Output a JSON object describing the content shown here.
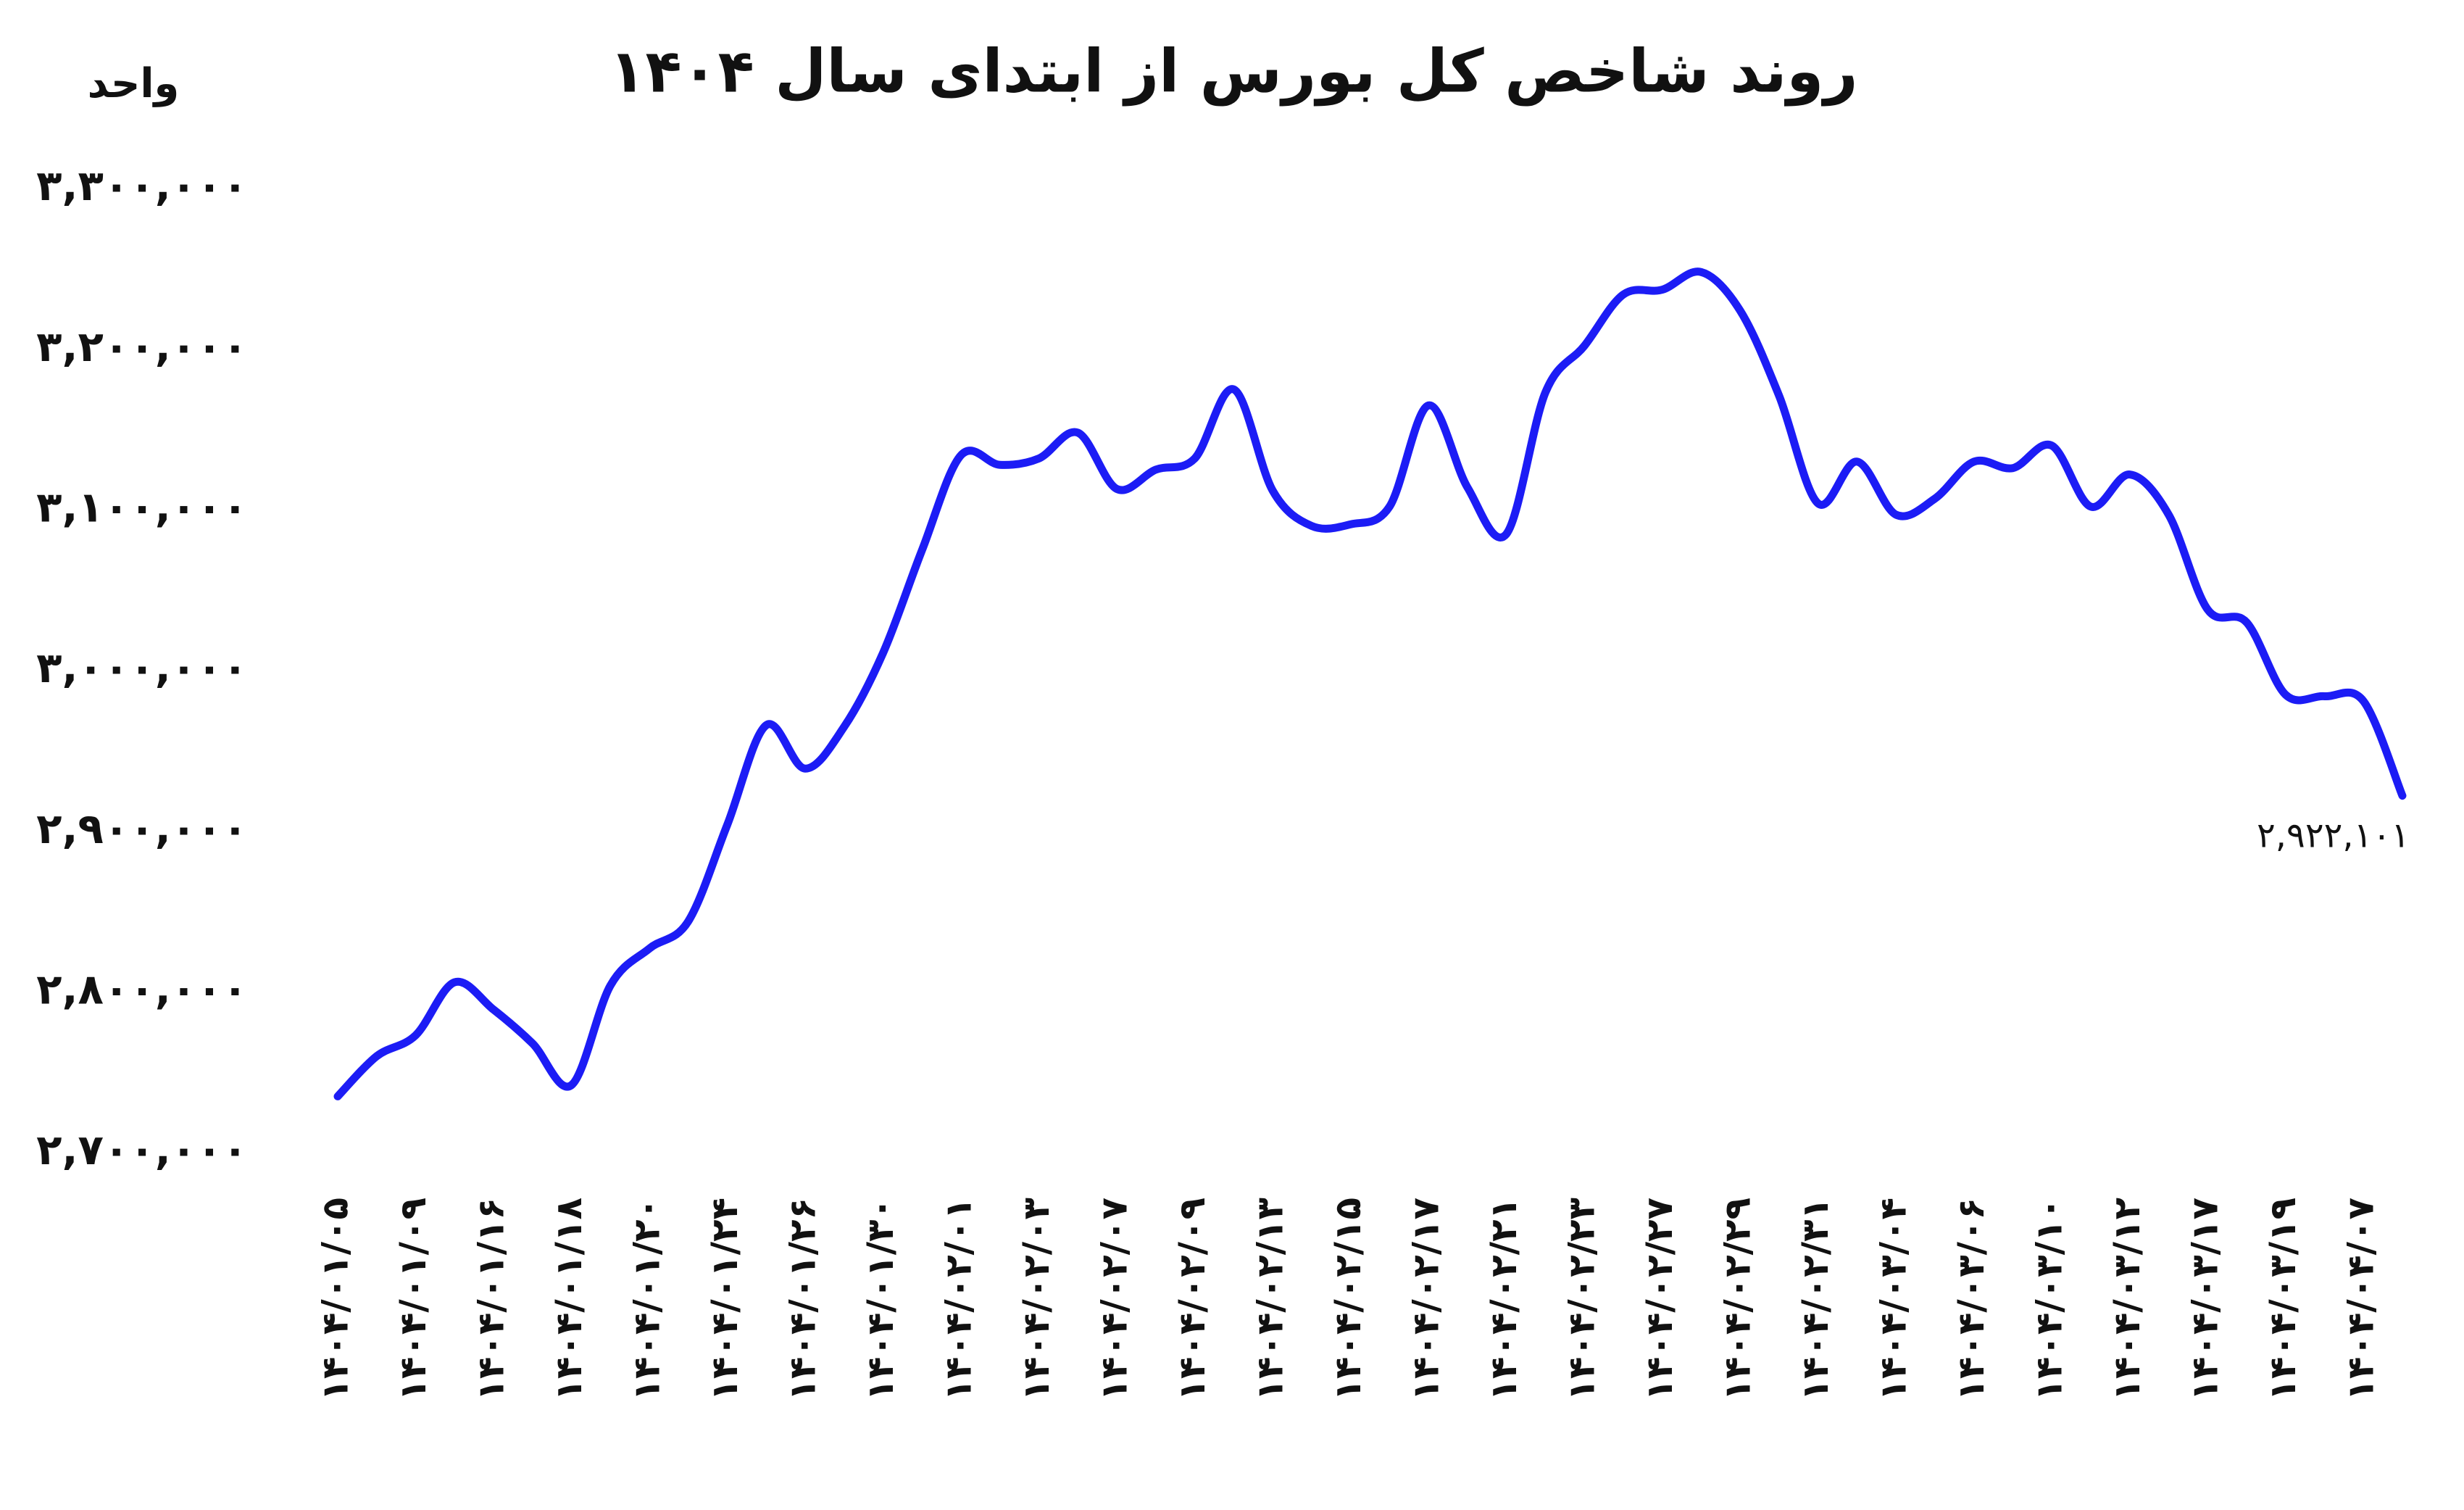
{
  "chart_data": {
    "type": "line",
    "title": "روند شاخص کل بورس از ابتدای سال ۱۴۰۴",
    "ylabel": "واحد",
    "categories": [
      "۱۴۰۴/۰۱/۰۵",
      null,
      "۱۴۰۴/۰۱/۰۹",
      null,
      "۱۴۰۴/۰۱/۱۶",
      null,
      "۱۴۰۴/۰۱/۱۸",
      null,
      "۱۴۰۴/۰۱/۲۰",
      null,
      "۱۴۰۴/۰۱/۲۴",
      null,
      "۱۴۰۴/۰۱/۲۶",
      null,
      "۱۴۰۴/۰۱/۳۰",
      null,
      "۱۴۰۴/۰۲/۰۱",
      null,
      "۱۴۰۴/۰۲/۰۳",
      null,
      "۱۴۰۴/۰۲/۰۷",
      null,
      "۱۴۰۴/۰۲/۰۹",
      null,
      "۱۴۰۴/۰۲/۱۳",
      null,
      "۱۴۰۴/۰۲/۱۵",
      null,
      "۱۴۰۴/۰۲/۱۷",
      null,
      "۱۴۰۴/۰۲/۲۱",
      null,
      "۱۴۰۴/۰۲/۲۳",
      null,
      "۱۴۰۴/۰۲/۲۷",
      null,
      "۱۴۰۴/۰۲/۲۹",
      null,
      "۱۴۰۴/۰۲/۳۱",
      null,
      "۱۴۰۴/۰۳/۰۴",
      null,
      "۱۴۰۴/۰۳/۰۶",
      null,
      "۱۴۰۴/۰۳/۱۰",
      null,
      "۱۴۰۴/۰۳/۱۲",
      null,
      "۱۴۰۴/۰۳/۱۷",
      null,
      "۱۴۰۴/۰۳/۱۹",
      null,
      "۱۴۰۴/۰۴/۰۷",
      null
    ],
    "values": [
      2735000,
      2760000,
      2773000,
      2806000,
      2789000,
      2768000,
      2742000,
      2804000,
      2827000,
      2844000,
      2904000,
      2966000,
      2939000,
      2965000,
      3011000,
      3075000,
      3134000,
      3128000,
      3132000,
      3148000,
      3113000,
      3125000,
      3132000,
      3175000,
      3112000,
      3090000,
      3091000,
      3102000,
      3165000,
      3114000,
      3085000,
      3173000,
      3202000,
      3234000,
      3237000,
      3248000,
      3224000,
      3171000,
      3104000,
      3130000,
      3097000,
      3107000,
      3130000,
      3126000,
      3140000,
      3102000,
      3122000,
      3097000,
      3038000,
      3030000,
      2985000,
      2984000,
      2981000,
      2922101
    ],
    "value_labels": [
      null,
      null,
      null,
      null,
      null,
      null,
      null,
      null,
      null,
      null,
      null,
      null,
      null,
      null,
      null,
      null,
      null,
      null,
      null,
      null,
      null,
      null,
      null,
      null,
      null,
      null,
      null,
      null,
      null,
      null,
      null,
      null,
      null,
      null,
      null,
      null,
      null,
      null,
      null,
      null,
      null,
      null,
      null,
      null,
      null,
      null,
      null,
      null,
      null,
      null,
      null,
      null,
      null,
      "۲,۹۲۲,۱۰۱"
    ],
    "color": "#1c1cf5",
    "ylim": [
      2700000,
      3300000
    ],
    "yticks": [
      {
        "value": 2700000,
        "label": "۲,۷۰۰,۰۰۰"
      },
      {
        "value": 2800000,
        "label": "۲,۸۰۰,۰۰۰"
      },
      {
        "value": 2900000,
        "label": "۲,۹۰۰,۰۰۰"
      },
      {
        "value": 3000000,
        "label": "۳,۰۰۰,۰۰۰"
      },
      {
        "value": 3100000,
        "label": "۳,۱۰۰,۰۰۰"
      },
      {
        "value": 3200000,
        "label": "۳,۲۰۰,۰۰۰"
      },
      {
        "value": 3300000,
        "label": "۳,۳۰۰,۰۰۰"
      }
    ],
    "grid": false
  }
}
